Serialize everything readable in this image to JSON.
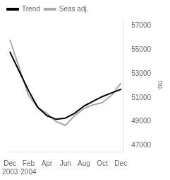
{
  "chart_data": {
    "type": "line",
    "x": [
      0,
      1,
      2,
      3,
      4,
      5,
      6,
      7,
      8,
      9,
      10,
      11,
      12
    ],
    "series": [
      {
        "name": "Seas adj.",
        "color": "#aaaaaa",
        "values": [
          55800,
          53500,
          51200,
          50200,
          49700,
          49000,
          48700,
          49500,
          50100,
          50400,
          50600,
          51200,
          52200
        ]
      },
      {
        "name": "Trend",
        "color": "#000000",
        "values": [
          54800,
          53200,
          51600,
          50200,
          49500,
          49200,
          49300,
          49700,
          50300,
          50700,
          51100,
          51400,
          51700
        ]
      }
    ],
    "xlim": [
      -0.3,
      12.3
    ],
    "xticks": [
      {
        "value": 0,
        "label": "Dec\n2003"
      },
      {
        "value": 2,
        "label": "Feb\n2004"
      },
      {
        "value": 4,
        "label": "Apr"
      },
      {
        "value": 6,
        "label": "Jun"
      },
      {
        "value": 8,
        "label": "Aug"
      },
      {
        "value": 10,
        "label": "Oct"
      },
      {
        "value": 12,
        "label": "Dec"
      }
    ],
    "ylim": [
      46500,
      57500
    ],
    "yticks": [
      47000,
      49000,
      51000,
      53000,
      55000,
      57000
    ],
    "ylabel": "no.",
    "legend": "upper left",
    "grid": false
  }
}
